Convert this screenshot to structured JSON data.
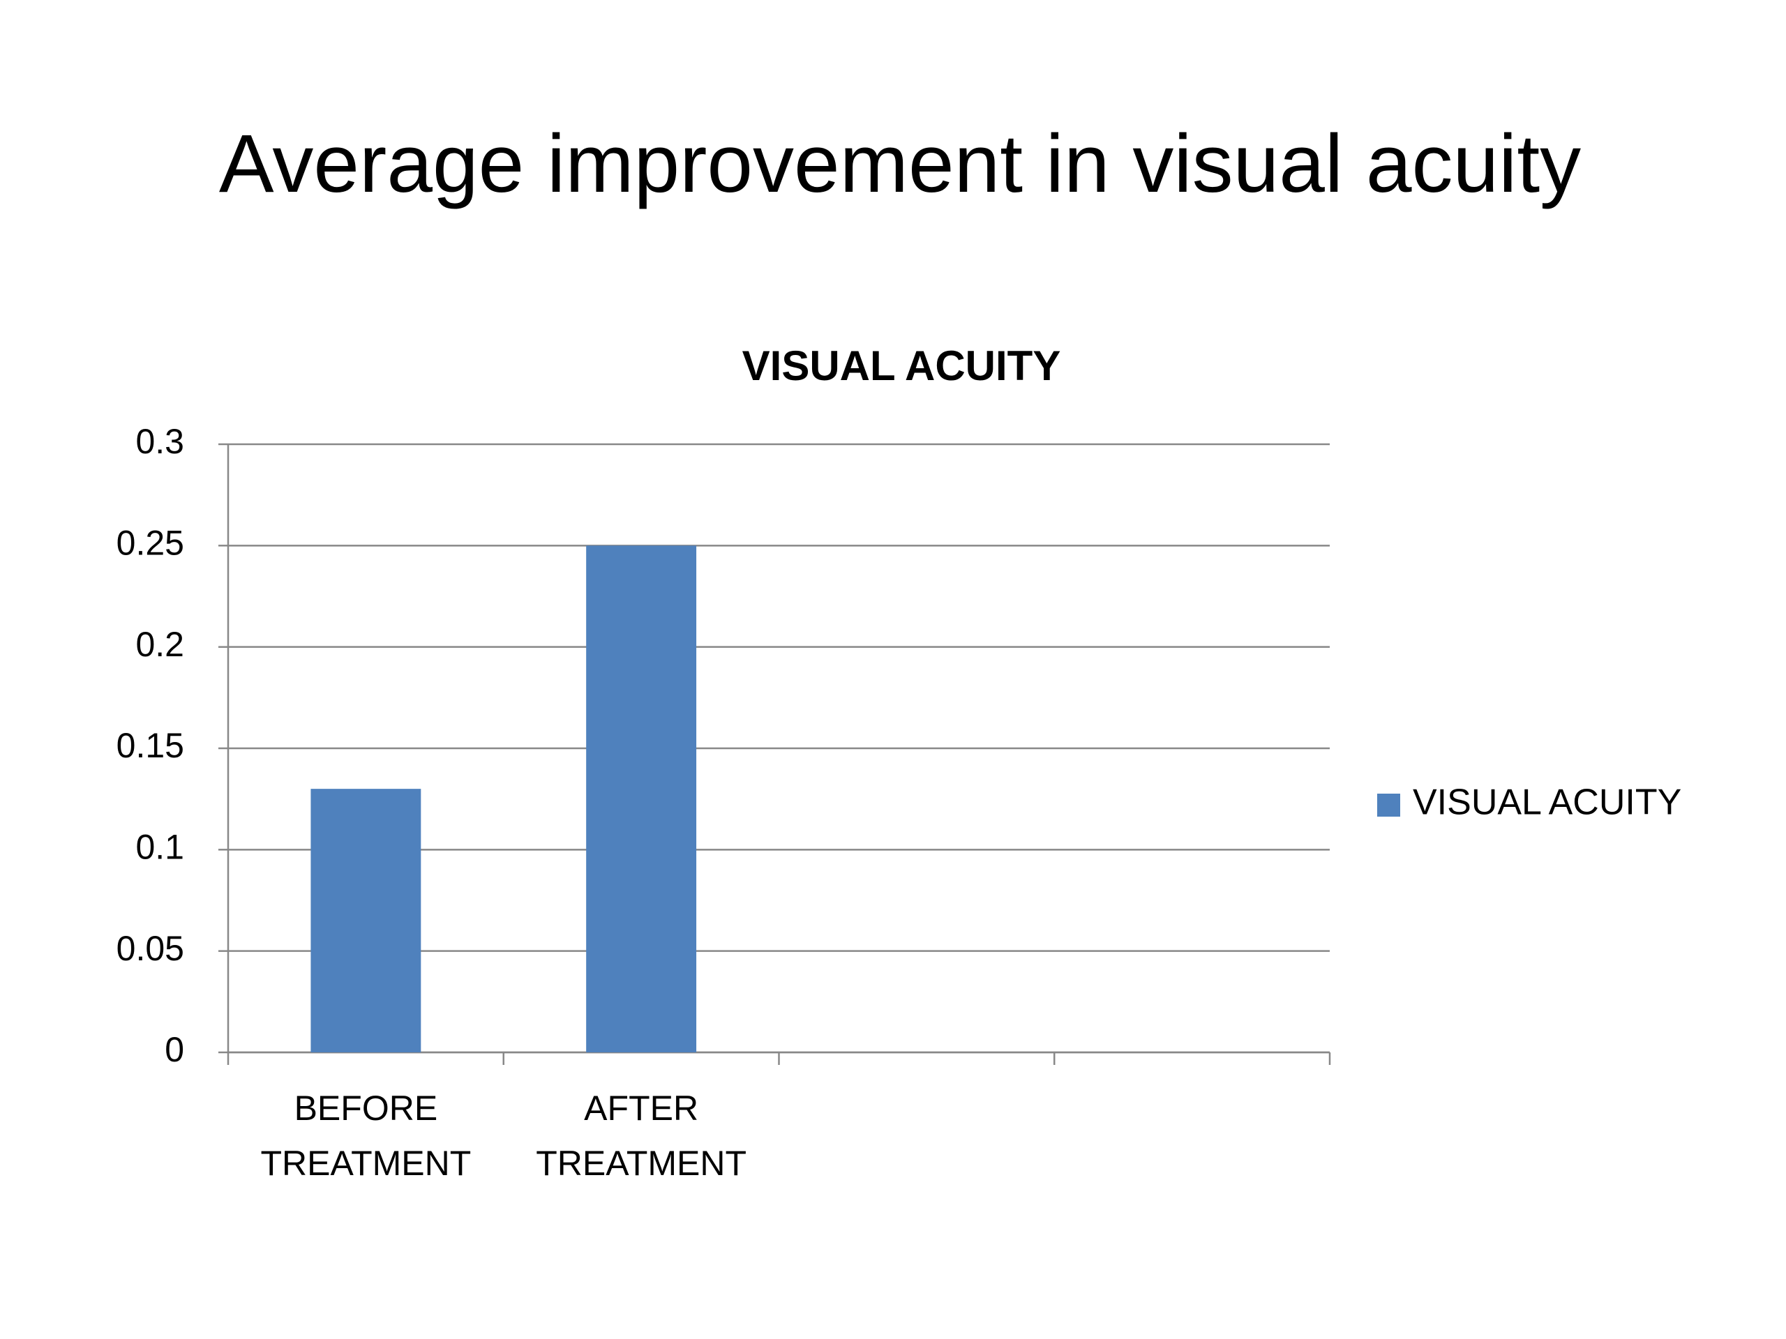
{
  "slide_title": "Average improvement in visual acuity",
  "chart_data": {
    "type": "bar",
    "title": "VISUAL ACUITY",
    "categories": [
      "BEFORE TREATMENT",
      "AFTER TREATMENT",
      null,
      null
    ],
    "series": [
      {
        "name": "VISUAL ACUITY",
        "color": "#4f81bd",
        "values": [
          0.13,
          0.25,
          null,
          null
        ]
      }
    ],
    "ylim": [
      0,
      0.3
    ],
    "yticks": [
      0,
      0.05,
      0.1,
      0.15,
      0.2,
      0.25,
      0.3
    ],
    "grid": true,
    "legend": "right"
  }
}
